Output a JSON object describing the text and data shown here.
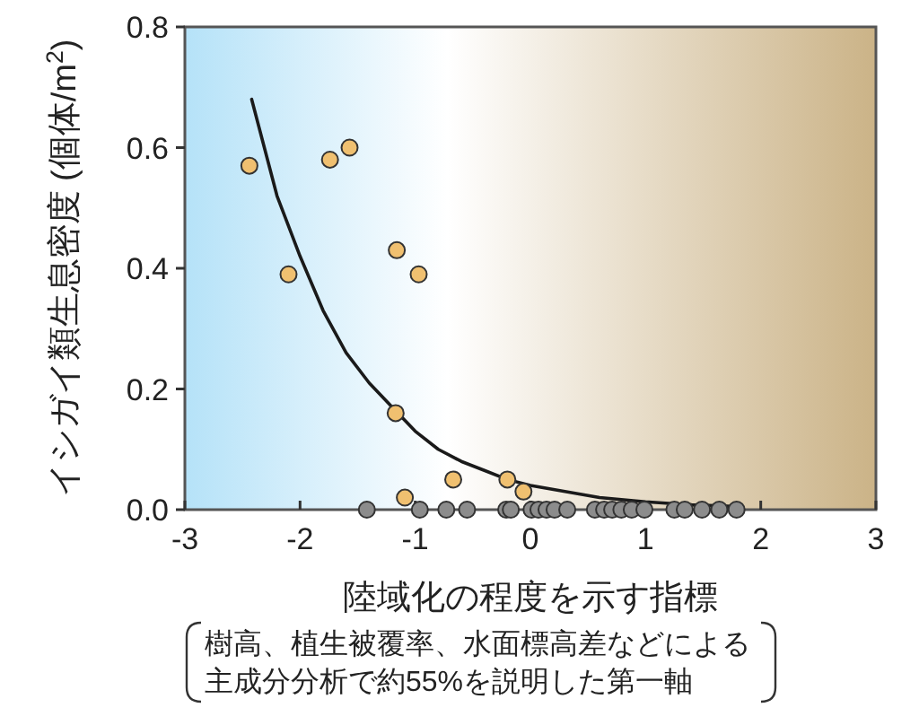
{
  "chart_data": {
    "type": "scatter",
    "xlabel": "陸域化の程度を示す指標",
    "ylabel": "イシガイ類生息密度 (個体/m$^{2}$)",
    "xlim": [
      -3,
      3
    ],
    "ylim": [
      0,
      0.8
    ],
    "xticks": [
      -3,
      -2,
      -1,
      0,
      1,
      2,
      3
    ],
    "yticks": [
      {
        "value": 0,
        "label": "0.0"
      },
      {
        "value": 0.2,
        "label": "0.2"
      },
      {
        "value": 0.4,
        "label": "0.4"
      },
      {
        "value": 0.6,
        "label": "0.6"
      },
      {
        "value": 0.8,
        "label": "0.8"
      }
    ],
    "grid": false,
    "marker": "circle",
    "series": [
      {
        "type": "line",
        "color": "#1a1a1a",
        "line_style": "solid",
        "marker": "none",
        "x": [
          -2.42,
          -2.2,
          -2.0,
          -1.8,
          -1.6,
          -1.4,
          -1.2,
          -1.0,
          -0.8,
          -0.6,
          -0.4,
          -0.2,
          0,
          0.3,
          0.6,
          1.0,
          1.4,
          1.8
        ],
        "values": [
          0.68,
          0.52,
          0.42,
          0.33,
          0.26,
          0.21,
          0.17,
          0.13,
          0.1,
          0.08,
          0.065,
          0.05,
          0.04,
          0.03,
          0.02,
          0.013,
          0.008,
          0.005
        ]
      },
      {
        "color": "#8c8c8c",
        "x": [
          -1.42,
          -0.96,
          -0.73,
          -0.55,
          -0.21,
          -0.17,
          0.01,
          0.07,
          0.14,
          0.21,
          0.32,
          0.56,
          0.64,
          0.71,
          0.79,
          0.88,
          0.99,
          1.25,
          1.34,
          1.49,
          1.64,
          1.79
        ],
        "values": [
          0,
          0,
          0,
          0,
          0,
          0,
          0,
          0,
          0,
          0,
          0,
          0,
          0,
          0,
          0,
          0,
          0,
          0,
          0,
          0,
          0,
          0
        ]
      },
      {
        "color": "#f0c070",
        "x": [
          -2.44,
          -2.1,
          -1.74,
          -1.57,
          -1.16,
          -0.97,
          -1.17,
          -1.09,
          -0.67,
          -0.2,
          -0.06
        ],
        "values": [
          0.57,
          0.39,
          0.58,
          0.6,
          0.43,
          0.39,
          0.16,
          0.02,
          0.05,
          0.05,
          0.03
        ]
      }
    ],
    "annotations": [
      "樹高、植生被覆率、水面標高差などによる",
      "主成分分析で約55%を説明した第一軸"
    ]
  }
}
